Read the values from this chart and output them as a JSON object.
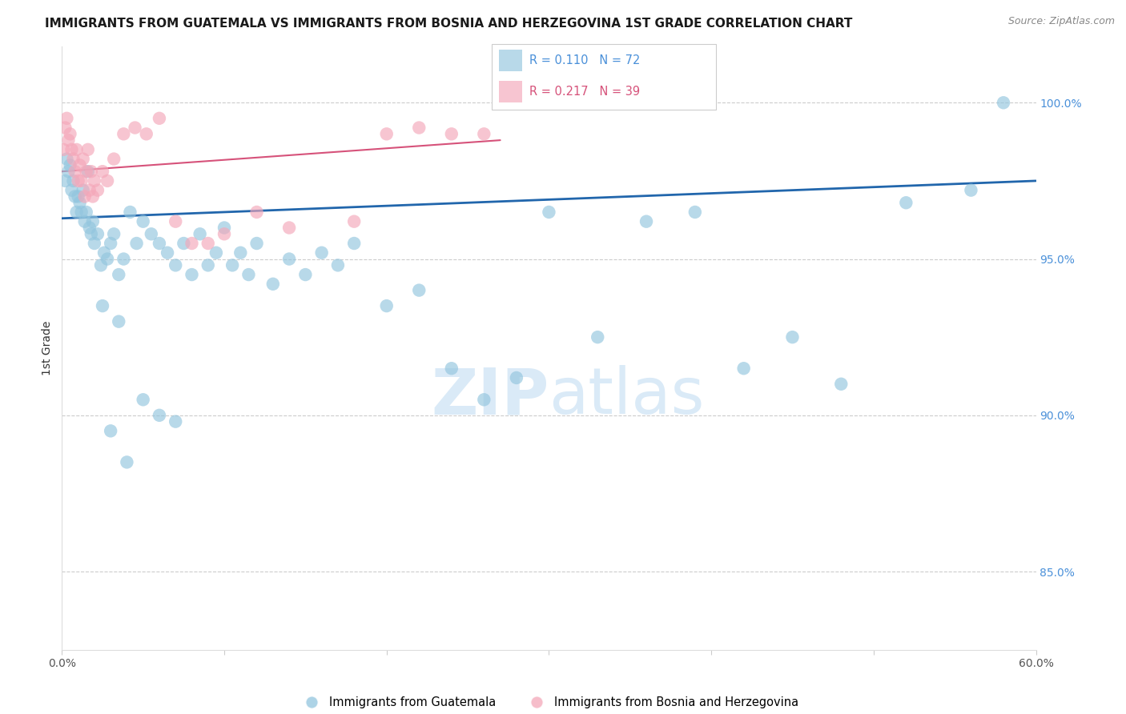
{
  "title": "IMMIGRANTS FROM GUATEMALA VS IMMIGRANTS FROM BOSNIA AND HERZEGOVINA 1ST GRADE CORRELATION CHART",
  "source": "Source: ZipAtlas.com",
  "ylabel": "1st Grade",
  "right_yticks": [
    85.0,
    90.0,
    95.0,
    100.0
  ],
  "blue_label": "Immigrants from Guatemala",
  "pink_label": "Immigrants from Bosnia and Herzegovina",
  "blue_R": 0.11,
  "blue_N": 72,
  "pink_R": 0.217,
  "pink_N": 39,
  "blue_color": "#92c5de",
  "pink_color": "#f4a7b9",
  "blue_line_color": "#2166ac",
  "pink_line_color": "#d6527a",
  "title_color": "#1a1a1a",
  "source_color": "#888888",
  "right_axis_color": "#4a90d9",
  "watermark_color": "#daeaf7",
  "xmin": 0.0,
  "xmax": 60.0,
  "ymin": 82.5,
  "ymax": 101.8,
  "blue_line_y0": 96.3,
  "blue_line_y1": 97.5,
  "pink_line_y0": 97.8,
  "pink_line_y1": 98.8,
  "pink_line_x1": 27.0,
  "blue_x": [
    0.2,
    0.3,
    0.4,
    0.5,
    0.6,
    0.7,
    0.8,
    0.9,
    1.0,
    1.1,
    1.2,
    1.3,
    1.4,
    1.5,
    1.6,
    1.7,
    1.8,
    1.9,
    2.0,
    2.2,
    2.4,
    2.6,
    2.8,
    3.0,
    3.2,
    3.5,
    3.8,
    4.2,
    4.6,
    5.0,
    5.5,
    6.0,
    6.5,
    7.0,
    7.5,
    8.0,
    8.5,
    9.0,
    9.5,
    10.0,
    10.5,
    11.0,
    11.5,
    12.0,
    13.0,
    14.0,
    15.0,
    16.0,
    17.0,
    18.0,
    20.0,
    22.0,
    24.0,
    26.0,
    28.0,
    30.0,
    33.0,
    36.0,
    39.0,
    42.0,
    45.0,
    48.0,
    52.0,
    56.0,
    58.0,
    3.0,
    4.0,
    5.0,
    6.0,
    7.0,
    2.5,
    3.5
  ],
  "blue_y": [
    97.5,
    98.2,
    97.8,
    98.0,
    97.2,
    97.5,
    97.0,
    96.5,
    97.0,
    96.8,
    96.5,
    97.2,
    96.2,
    96.5,
    97.8,
    96.0,
    95.8,
    96.2,
    95.5,
    95.8,
    94.8,
    95.2,
    95.0,
    95.5,
    95.8,
    94.5,
    95.0,
    96.5,
    95.5,
    96.2,
    95.8,
    95.5,
    95.2,
    94.8,
    95.5,
    94.5,
    95.8,
    94.8,
    95.2,
    96.0,
    94.8,
    95.2,
    94.5,
    95.5,
    94.2,
    95.0,
    94.5,
    95.2,
    94.8,
    95.5,
    93.5,
    94.0,
    91.5,
    90.5,
    91.2,
    96.5,
    92.5,
    96.2,
    96.5,
    91.5,
    92.5,
    91.0,
    96.8,
    97.2,
    100.0,
    89.5,
    88.5,
    90.5,
    90.0,
    89.8,
    93.5,
    93.0
  ],
  "pink_x": [
    0.1,
    0.2,
    0.3,
    0.4,
    0.5,
    0.6,
    0.7,
    0.8,
    0.9,
    1.0,
    1.1,
    1.2,
    1.3,
    1.4,
    1.5,
    1.6,
    1.7,
    1.8,
    1.9,
    2.0,
    2.2,
    2.5,
    2.8,
    3.2,
    3.8,
    4.5,
    5.2,
    6.0,
    7.0,
    8.0,
    10.0,
    12.0,
    14.0,
    18.0,
    20.0,
    22.0,
    24.0,
    26.0,
    9.0
  ],
  "pink_y": [
    98.5,
    99.2,
    99.5,
    98.8,
    99.0,
    98.5,
    98.2,
    97.8,
    98.5,
    97.5,
    98.0,
    97.5,
    98.2,
    97.0,
    97.8,
    98.5,
    97.2,
    97.8,
    97.0,
    97.5,
    97.2,
    97.8,
    97.5,
    98.2,
    99.0,
    99.2,
    99.0,
    99.5,
    96.2,
    95.5,
    95.8,
    96.5,
    96.0,
    96.2,
    99.0,
    99.2,
    99.0,
    99.0,
    95.5
  ]
}
